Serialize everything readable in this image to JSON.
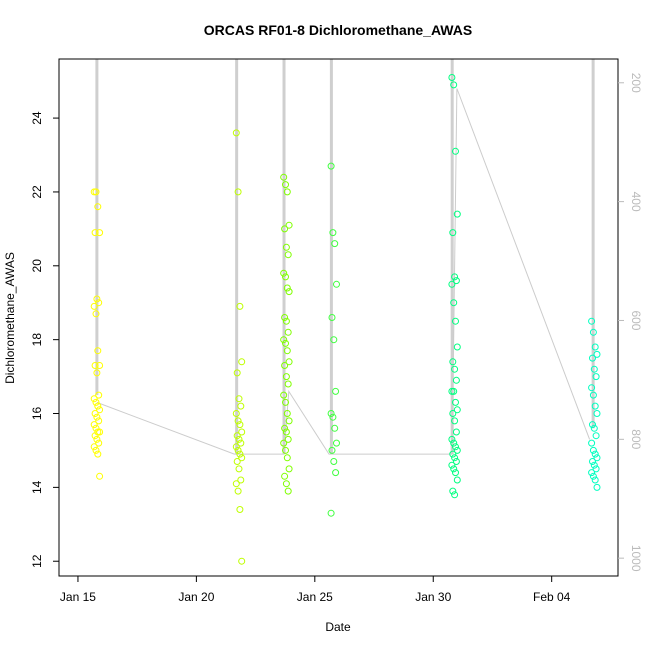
{
  "chart_data": {
    "type": "scatter",
    "title": "ORCAS RF01-8 Dichloromethane_AWAS",
    "xlabel": "Date",
    "ylabel": "Dichloromethane_AWAS",
    "x_ticks": [
      "Jan 15",
      "Jan 20",
      "Jan 25",
      "Jan 30",
      "Feb 04"
    ],
    "x_tick_days": [
      15,
      20,
      25,
      30,
      35
    ],
    "xlim": [
      14.2,
      37.8
    ],
    "ylim": [
      11.6,
      25.6
    ],
    "y_ticks": [
      12,
      14,
      16,
      18,
      20,
      22,
      24
    ],
    "secondary_axis": {
      "description": "pressure (inverted)",
      "ticks": [
        200,
        400,
        600,
        800,
        1000
      ],
      "range_top": 160,
      "range_bottom": 1030,
      "color": "#bbbbbb"
    },
    "flights": [
      {
        "day": 15.8,
        "color": "#ffff00",
        "values": [
          22.0,
          22.0,
          21.6,
          20.9,
          20.9,
          19.1,
          19.0,
          18.9,
          18.7,
          17.7,
          17.3,
          17.3,
          17.1,
          16.5,
          16.4,
          16.3,
          16.2,
          16.1,
          16.0,
          15.9,
          15.8,
          15.7,
          15.6,
          15.5,
          15.5,
          15.4,
          15.3,
          15.2,
          15.1,
          15.0,
          14.9,
          14.3
        ]
      },
      {
        "day": 21.8,
        "color": "#bfff00",
        "values": [
          23.6,
          22.0,
          18.9,
          17.4,
          17.1,
          16.4,
          16.2,
          16.0,
          15.8,
          15.7,
          15.5,
          15.4,
          15.3,
          15.2,
          15.1,
          15.0,
          14.9,
          14.8,
          14.7,
          14.5,
          14.2,
          14.1,
          13.9,
          13.4,
          12.0
        ]
      },
      {
        "day": 23.8,
        "color": "#80ff00",
        "values": [
          22.4,
          22.2,
          22.0,
          21.1,
          21.0,
          20.5,
          20.3,
          19.8,
          19.7,
          19.4,
          19.3,
          18.6,
          18.5,
          18.2,
          18.0,
          17.9,
          17.7,
          17.4,
          17.3,
          17.0,
          16.8,
          16.5,
          16.3,
          16.0,
          15.8,
          15.6,
          15.5,
          15.3,
          15.2,
          15.0,
          14.8,
          14.5,
          14.3,
          14.1,
          13.9
        ]
      },
      {
        "day": 25.8,
        "color": "#40ff40",
        "values": [
          22.7,
          20.9,
          20.6,
          19.5,
          18.6,
          18.0,
          16.6,
          16.0,
          15.9,
          15.6,
          15.2,
          15.0,
          14.7,
          14.4,
          13.3
        ]
      },
      {
        "day": 30.9,
        "color": "#00ff80",
        "values": [
          25.1,
          24.9,
          23.1,
          21.4,
          20.9,
          19.7,
          19.6,
          19.5,
          19.0,
          18.5,
          17.8,
          17.4,
          17.2,
          16.9,
          16.6,
          16.6,
          16.3,
          16.1,
          16.0,
          15.8,
          15.5,
          15.3,
          15.2,
          15.1,
          15.0,
          14.9,
          14.8,
          14.7,
          14.6,
          14.5,
          14.4,
          14.2,
          13.9,
          13.8
        ]
      },
      {
        "day": 36.8,
        "color": "#00ffc0",
        "values": [
          18.5,
          18.2,
          17.8,
          17.6,
          17.5,
          17.2,
          17.0,
          16.7,
          16.5,
          16.2,
          16.0,
          15.7,
          15.6,
          15.4,
          15.2,
          15.0,
          14.9,
          14.8,
          14.7,
          14.6,
          14.5,
          14.4,
          14.3,
          14.2,
          14.0
        ]
      }
    ],
    "trace_line": {
      "color": "#cccccc",
      "points": [
        [
          15.8,
          16.3
        ],
        [
          21.6,
          14.9
        ],
        [
          23.7,
          14.9
        ],
        [
          23.9,
          16.6
        ],
        [
          25.6,
          14.9
        ],
        [
          30.8,
          14.9
        ],
        [
          31.0,
          24.8
        ],
        [
          36.6,
          15.3
        ]
      ]
    },
    "altitude_spikes": [
      {
        "day": 15.8,
        "y_bottom": 16.5
      },
      {
        "day": 21.7,
        "y_bottom": 14.9
      },
      {
        "day": 23.7,
        "y_bottom": 14.9
      },
      {
        "day": 25.7,
        "y_bottom": 14.9
      },
      {
        "day": 30.8,
        "y_bottom": 14.9
      },
      {
        "day": 36.75,
        "y_bottom": 15.6
      }
    ],
    "grid": false,
    "legend": "none"
  }
}
